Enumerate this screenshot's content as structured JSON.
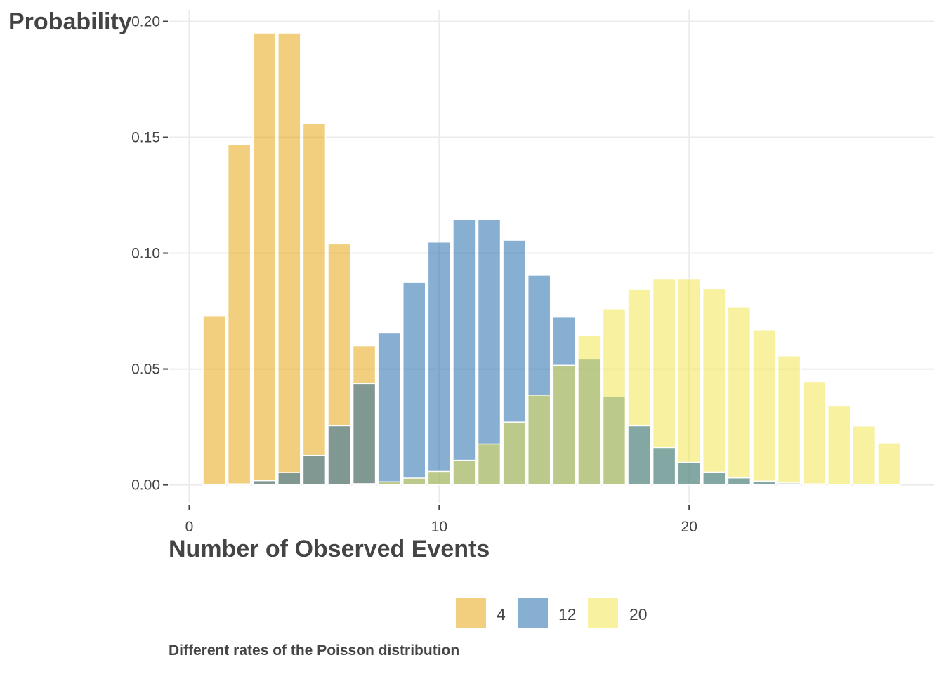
{
  "chart_data": {
    "type": "bar",
    "ylabel": "Probability",
    "xlabel": "Number of Observed Events",
    "caption": "Different rates of the Poisson distribution",
    "xlim": [
      -0.8,
      29.8
    ],
    "ylim": [
      -0.008,
      0.205
    ],
    "x_ticks": [
      0,
      10,
      20
    ],
    "y_ticks": [
      0.0,
      0.05,
      0.1,
      0.15,
      0.2
    ],
    "y_tick_labels": [
      "0.00",
      "0.05",
      "0.10",
      "0.15",
      "0.20"
    ],
    "grid": true,
    "legend_position": "bottom",
    "series": [
      {
        "name": "4",
        "color": "#E69F00",
        "x": [
          1,
          2,
          3,
          4,
          5,
          6,
          7
        ],
        "values": [
          0.073,
          0.147,
          0.195,
          0.195,
          0.156,
          0.104,
          0.06
        ]
      },
      {
        "name": "12",
        "color": "#0F5FA6",
        "x": [
          2,
          3,
          4,
          5,
          6,
          7,
          8,
          9,
          10,
          11,
          12,
          13,
          14,
          15,
          16,
          17
        ],
        "values": [
          0.0004,
          0.0018,
          0.0053,
          0.0127,
          0.0255,
          0.0437,
          0.0655,
          0.0874,
          0.1048,
          0.1144,
          0.1144,
          0.1056,
          0.0905,
          0.0724,
          0.0543,
          0.0383
        ]
      },
      {
        "name": "20",
        "color": "#F0E442",
        "x": [
          7,
          8,
          9,
          10,
          11,
          12,
          13,
          14,
          15,
          16,
          17,
          18,
          19,
          20,
          21,
          22,
          23,
          24,
          25,
          26,
          27,
          28
        ],
        "values": [
          0.0005,
          0.0013,
          0.0029,
          0.0058,
          0.0106,
          0.0176,
          0.0271,
          0.0387,
          0.0516,
          0.0646,
          0.076,
          0.0844,
          0.0888,
          0.0888,
          0.0846,
          0.0769,
          0.0669,
          0.0557,
          0.0446,
          0.0343,
          0.0254,
          0.0181
        ]
      },
      {
        "name": "12",
        "color": "#0F5FA6",
        "legend": false,
        "x": [
          18,
          19,
          20,
          21,
          22,
          23,
          24,
          25,
          26,
          27
        ],
        "values": [
          0.0255,
          0.0161,
          0.0097,
          0.0055,
          0.003,
          0.0016,
          0.0008,
          0.0004,
          0.0002,
          0.0001
        ]
      }
    ],
    "legend": [
      {
        "label": "4",
        "color": "#E69F00"
      },
      {
        "label": "12",
        "color": "#0F5FA6"
      },
      {
        "label": "20",
        "color": "#F0E442"
      }
    ],
    "bar_opacity": 0.5
  }
}
